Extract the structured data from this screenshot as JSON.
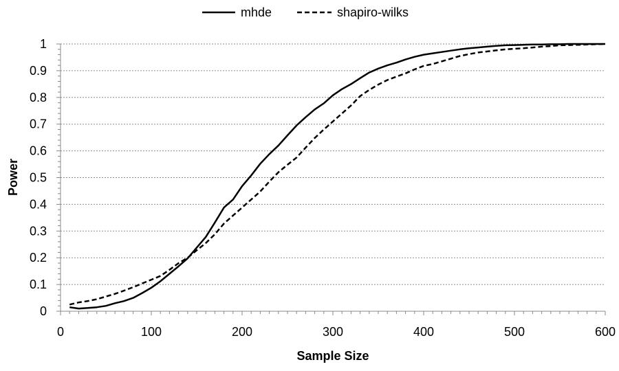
{
  "chart_data": {
    "type": "line",
    "title": "",
    "xlabel": "Sample Size",
    "ylabel": "Power",
    "xlim": [
      0,
      600
    ],
    "ylim": [
      0,
      1
    ],
    "xticks": [
      0,
      100,
      200,
      300,
      400,
      500,
      600
    ],
    "yticks": [
      0,
      0.1,
      0.2,
      0.3,
      0.4,
      0.5,
      0.6,
      0.7,
      0.8,
      0.9,
      1
    ],
    "xtick_labels": [
      "0",
      "100",
      "200",
      "300",
      "400",
      "500",
      "600"
    ],
    "ytick_labels": [
      "0",
      "0.1",
      "0.2",
      "0.3",
      "0.4",
      "0.5",
      "0.6",
      "0.7",
      "0.8",
      "0.9",
      "1"
    ],
    "grid": "horizontal dashed",
    "legend": "top",
    "x": [
      10,
      20,
      30,
      40,
      50,
      60,
      70,
      80,
      90,
      100,
      110,
      120,
      130,
      140,
      150,
      160,
      170,
      180,
      190,
      200,
      210,
      220,
      230,
      240,
      250,
      260,
      270,
      280,
      290,
      300,
      310,
      320,
      330,
      340,
      350,
      360,
      370,
      380,
      390,
      400,
      410,
      420,
      430,
      440,
      450,
      460,
      470,
      480,
      490,
      500,
      510,
      520,
      530,
      540,
      550,
      560,
      570,
      580,
      590,
      600
    ],
    "series": [
      {
        "name": "mhde",
        "style": "solid",
        "values": [
          0.015,
          0.01,
          0.012,
          0.015,
          0.02,
          0.03,
          0.038,
          0.05,
          0.068,
          0.088,
          0.112,
          0.14,
          0.168,
          0.198,
          0.238,
          0.278,
          0.332,
          0.388,
          0.418,
          0.468,
          0.508,
          0.552,
          0.588,
          0.62,
          0.658,
          0.695,
          0.726,
          0.755,
          0.778,
          0.808,
          0.831,
          0.85,
          0.872,
          0.893,
          0.908,
          0.92,
          0.93,
          0.942,
          0.952,
          0.96,
          0.965,
          0.97,
          0.975,
          0.98,
          0.984,
          0.987,
          0.99,
          0.993,
          0.995,
          0.996,
          0.997,
          0.998,
          0.998,
          0.999,
          0.999,
          1.0,
          1.0,
          1.0,
          1.0,
          1.0
        ]
      },
      {
        "name": "shapiro-wilks",
        "style": "dashed",
        "values": [
          0.025,
          0.033,
          0.038,
          0.045,
          0.055,
          0.065,
          0.077,
          0.09,
          0.104,
          0.118,
          0.132,
          0.155,
          0.18,
          0.2,
          0.228,
          0.255,
          0.288,
          0.328,
          0.358,
          0.388,
          0.418,
          0.448,
          0.485,
          0.52,
          0.548,
          0.575,
          0.612,
          0.648,
          0.68,
          0.71,
          0.74,
          0.77,
          0.805,
          0.828,
          0.848,
          0.865,
          0.878,
          0.89,
          0.905,
          0.918,
          0.925,
          0.935,
          0.945,
          0.955,
          0.962,
          0.968,
          0.972,
          0.976,
          0.98,
          0.982,
          0.984,
          0.987,
          0.99,
          0.992,
          0.995,
          0.996,
          0.997,
          0.998,
          0.999,
          1.0
        ]
      }
    ]
  }
}
